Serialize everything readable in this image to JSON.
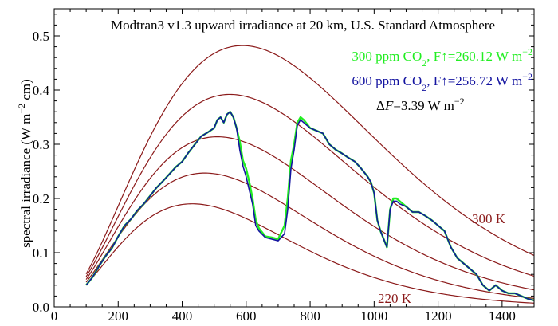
{
  "chart_data": {
    "type": "line",
    "title": "Modtran3 v1.3 upward irradiance at 20 km, U.S. Standard Atmosphere",
    "xlabel": "",
    "ylabel_main": "spectral irradiance (W  m",
    "ylabel_sup": "−2",
    "ylabel_tail": " cm)",
    "xlim": [
      0,
      1500
    ],
    "ylim": [
      0,
      0.55
    ],
    "xticks": [
      0,
      200,
      400,
      600,
      800,
      1000,
      1200,
      1400
    ],
    "xtick_labels": [
      "0",
      "200",
      "400",
      "600",
      "800",
      "1000",
      "1200",
      "1400"
    ],
    "yticks": [
      0.0,
      0.1,
      0.2,
      0.3,
      0.4,
      0.5
    ],
    "ytick_labels": [
      "0.0",
      "0.1",
      "0.2",
      "0.3",
      "0.4",
      "0.5"
    ],
    "grid": false,
    "legend": {
      "placement": "top-right",
      "entries": [
        {
          "prefix": "300 ppm CO",
          "sub": "2",
          "mid": ", F↑=260.12 W m",
          "sup": "−2",
          "color": "#22ee22"
        },
        {
          "prefix": "600 ppm CO",
          "sub": "2",
          "mid": ", F↑=256.72 W m",
          "sup": "−2",
          "color": "#1414a0"
        }
      ],
      "delta": {
        "sym": "Δ",
        "var": "F",
        "rest": "=3.39 W m",
        "sup": "−2",
        "color": "#000000"
      }
    },
    "planck_curves": {
      "color": "#8b1a1a",
      "temperatures_K": [
        220,
        240,
        260,
        280,
        300
      ],
      "x_range": [
        100,
        1500
      ],
      "label_high": "300 K",
      "label_low": "220 K"
    },
    "series": [
      {
        "name": "300 ppm CO2",
        "color": "#22ee22",
        "x": [
          100,
          120,
          140,
          160,
          180,
          200,
          220,
          240,
          260,
          280,
          300,
          320,
          340,
          360,
          380,
          400,
          420,
          440,
          460,
          480,
          500,
          510,
          520,
          530,
          540,
          550,
          560,
          570,
          580,
          590,
          600,
          610,
          620,
          630,
          640,
          660,
          680,
          700,
          720,
          730,
          740,
          750,
          760,
          770,
          780,
          800,
          820,
          840,
          860,
          880,
          900,
          920,
          940,
          960,
          980,
          990,
          1000,
          1010,
          1020,
          1030,
          1040,
          1050,
          1060,
          1070,
          1080,
          1100,
          1120,
          1140,
          1160,
          1180,
          1200,
          1220,
          1240,
          1260,
          1280,
          1300,
          1320,
          1340,
          1360,
          1380,
          1400,
          1420,
          1440,
          1460,
          1480,
          1500
        ],
        "y": [
          0.04,
          0.055,
          0.075,
          0.093,
          0.108,
          0.13,
          0.15,
          0.162,
          0.178,
          0.19,
          0.205,
          0.22,
          0.232,
          0.245,
          0.258,
          0.268,
          0.285,
          0.3,
          0.315,
          0.322,
          0.33,
          0.345,
          0.35,
          0.34,
          0.355,
          0.36,
          0.35,
          0.33,
          0.305,
          0.27,
          0.255,
          0.23,
          0.2,
          0.16,
          0.145,
          0.13,
          0.128,
          0.125,
          0.15,
          0.2,
          0.27,
          0.3,
          0.34,
          0.35,
          0.345,
          0.33,
          0.325,
          0.32,
          0.3,
          0.29,
          0.283,
          0.275,
          0.268,
          0.255,
          0.24,
          0.23,
          0.21,
          0.16,
          0.14,
          0.125,
          0.11,
          0.18,
          0.2,
          0.2,
          0.195,
          0.185,
          0.175,
          0.175,
          0.168,
          0.16,
          0.15,
          0.14,
          0.11,
          0.09,
          0.08,
          0.07,
          0.06,
          0.04,
          0.03,
          0.04,
          0.03,
          0.025,
          0.025,
          0.02,
          0.015,
          0.012
        ]
      },
      {
        "name": "600 ppm CO2",
        "color": "#1414a0",
        "x": [
          100,
          120,
          140,
          160,
          180,
          200,
          220,
          240,
          260,
          280,
          300,
          320,
          340,
          360,
          380,
          400,
          420,
          440,
          460,
          480,
          500,
          510,
          520,
          530,
          540,
          550,
          560,
          570,
          580,
          590,
          600,
          610,
          620,
          630,
          640,
          660,
          680,
          700,
          720,
          730,
          740,
          750,
          760,
          770,
          780,
          800,
          820,
          840,
          860,
          880,
          900,
          920,
          940,
          960,
          980,
          990,
          1000,
          1010,
          1020,
          1030,
          1040,
          1050,
          1060,
          1070,
          1080,
          1100,
          1120,
          1140,
          1160,
          1180,
          1200,
          1220,
          1240,
          1260,
          1280,
          1300,
          1320,
          1340,
          1360,
          1380,
          1400,
          1420,
          1440,
          1460,
          1480,
          1500
        ],
        "y": [
          0.04,
          0.055,
          0.075,
          0.093,
          0.108,
          0.13,
          0.15,
          0.162,
          0.178,
          0.19,
          0.205,
          0.22,
          0.232,
          0.245,
          0.258,
          0.268,
          0.285,
          0.3,
          0.315,
          0.322,
          0.33,
          0.345,
          0.35,
          0.34,
          0.355,
          0.36,
          0.35,
          0.33,
          0.29,
          0.26,
          0.24,
          0.215,
          0.19,
          0.15,
          0.14,
          0.128,
          0.125,
          0.122,
          0.135,
          0.18,
          0.255,
          0.29,
          0.335,
          0.345,
          0.34,
          0.33,
          0.325,
          0.32,
          0.3,
          0.29,
          0.283,
          0.275,
          0.268,
          0.255,
          0.24,
          0.23,
          0.21,
          0.16,
          0.14,
          0.125,
          0.11,
          0.18,
          0.195,
          0.195,
          0.19,
          0.185,
          0.175,
          0.175,
          0.168,
          0.16,
          0.15,
          0.14,
          0.11,
          0.09,
          0.08,
          0.07,
          0.06,
          0.04,
          0.03,
          0.04,
          0.03,
          0.025,
          0.025,
          0.02,
          0.015,
          0.012
        ]
      }
    ]
  }
}
